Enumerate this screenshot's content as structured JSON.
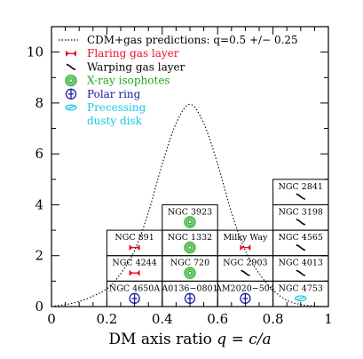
{
  "chart_data": {
    "type": "histogram",
    "xlabel_prefix": "DM axis ratio ",
    "xlabel_q": "q",
    "xlabel_eq": " = ",
    "xlabel_ca": "c/a",
    "xlim": [
      0,
      1
    ],
    "ylim": [
      0,
      11
    ],
    "xticks": [
      "0",
      "0.2",
      "0.4",
      "0.6",
      "0.8",
      "1"
    ],
    "yticks": [
      "0",
      "2",
      "4",
      "6",
      "8",
      "10"
    ],
    "xtick_values": [
      0,
      0.2,
      0.4,
      0.6,
      0.8,
      1.0
    ],
    "ytick_values": [
      0,
      2,
      4,
      6,
      8,
      10
    ],
    "legend": [
      {
        "label": "CDM+gas predictions: q=0.5 +/− 0.25",
        "symbol": "dotted-line",
        "color": "#000000"
      },
      {
        "label": "Flaring gas layer",
        "symbol": "flaring",
        "color": "#e8102a"
      },
      {
        "label": "Warping gas layer",
        "symbol": "warping",
        "color": "#000000"
      },
      {
        "label": "X-ray isophotes",
        "symbol": "xray",
        "color": "#1aa81a"
      },
      {
        "label": "Polar ring",
        "symbol": "polar",
        "color": "#1a1aa0"
      },
      {
        "label": "Precessing",
        "symbol": "precess",
        "color": "#18c8e8"
      },
      {
        "label": "dusty disk",
        "symbol": "none",
        "color": "#18c8e8"
      }
    ],
    "prediction_curve": {
      "x": [
        0.0,
        0.1,
        0.2,
        0.25,
        0.3,
        0.35,
        0.4,
        0.45,
        0.5,
        0.55,
        0.6,
        0.65,
        0.7,
        0.75,
        0.8,
        0.85,
        0.9,
        0.95,
        1.0
      ],
      "y": [
        0.0,
        0.2,
        0.7,
        1.3,
        2.2,
        3.7,
        5.6,
        7.2,
        7.95,
        7.2,
        5.6,
        3.7,
        2.2,
        1.3,
        0.65,
        0.25,
        0.08,
        0.02,
        0.0
      ]
    },
    "bins": [
      {
        "x0": 0.2,
        "x1": 0.4,
        "galaxies": [
          {
            "name": "NGC 4650A",
            "symbol": "polar",
            "color": "#1a1aa0"
          },
          {
            "name": "NGC 4244",
            "symbol": "flaring",
            "color": "#e8102a"
          },
          {
            "name": "NGC 891",
            "symbol": "flaring",
            "color": "#e8102a"
          }
        ]
      },
      {
        "x0": 0.4,
        "x1": 0.6,
        "galaxies": [
          {
            "name": "A0136−0801",
            "symbol": "polar",
            "color": "#1a1aa0"
          },
          {
            "name": "NGC 720",
            "symbol": "xray",
            "color": "#1aa81a"
          },
          {
            "name": "NGC 1332",
            "symbol": "xray",
            "color": "#1aa81a"
          },
          {
            "name": "NGC 3923",
            "symbol": "xray",
            "color": "#1aa81a"
          }
        ]
      },
      {
        "x0": 0.6,
        "x1": 0.8,
        "galaxies": [
          {
            "name": "AM2020−504",
            "symbol": "polar",
            "color": "#1a1aa0"
          },
          {
            "name": "NGC 2903",
            "symbol": "warping",
            "color": "#000000"
          },
          {
            "name": "Milky Way",
            "symbol": "flaring",
            "color": "#e8102a",
            "name_color": "#e010e0"
          }
        ]
      },
      {
        "x0": 0.8,
        "x1": 1.0,
        "galaxies": [
          {
            "name": "NGC 4753",
            "symbol": "precess",
            "color": "#18c8e8"
          },
          {
            "name": "NGC 4013",
            "symbol": "warping",
            "color": "#000000"
          },
          {
            "name": "NGC 4565",
            "symbol": "warping",
            "color": "#000000"
          },
          {
            "name": "NGC 3198",
            "symbol": "warping",
            "color": "#000000"
          },
          {
            "name": "NGC 2841",
            "symbol": "warping",
            "color": "#000000"
          }
        ]
      }
    ]
  }
}
